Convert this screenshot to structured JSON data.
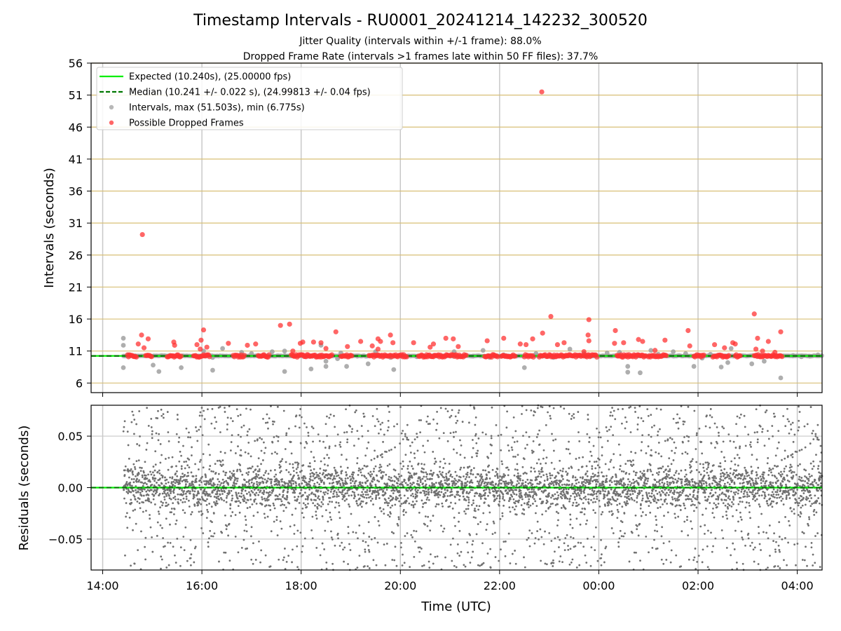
{
  "chart_data": [
    {
      "type": "scatter",
      "title": "Timestamp Intervals - RU0001_20241214_142232_300520",
      "subtitle_1": "Jitter Quality (intervals within +/-1 frame): 88.0%",
      "subtitle_2": "Dropped Frame Rate (intervals >1 frames late within 50 FF files): 37.7%",
      "xlabel": "",
      "ylabel": "Intervals (seconds)",
      "ylim": [
        4.5,
        56
      ],
      "y_ticks": [
        "6",
        "11",
        "16",
        "21",
        "26",
        "31",
        "36",
        "41",
        "46",
        "51",
        "56"
      ],
      "x_range": [
        "2024-12-14 13:46",
        "2024-12-15 04:30"
      ],
      "x_tick_labels": [
        "14:00",
        "16:00",
        "18:00",
        "20:00",
        "22:00",
        "00:00",
        "02:00",
        "04:00"
      ],
      "grid": true,
      "legend_position": "upper-left",
      "legend": [
        "Expected (10.240s), (25.00000 fps)",
        "Median (10.241 +/- 0.022 s), (24.99813 +/- 0.04 fps)",
        "Intervals, max (51.503s), min (6.775s)",
        "Possible Dropped Frames"
      ],
      "expected_interval": 10.24,
      "median_interval": 10.241,
      "colors": {
        "expected": "#00ee00",
        "median": "#007700",
        "intervals": "#a0a0a0",
        "dropped": "#ff3333",
        "interval_gridline": "#d8bf76"
      },
      "series": [
        {
          "name": "Intervals, max (51.503s), min (6.775s)",
          "points": [
            [
              "14:25",
              13.0
            ],
            [
              "14:25",
              11.9
            ],
            [
              "14:25",
              8.4
            ],
            [
              "14:31",
              10.4
            ],
            [
              "15:01",
              8.8
            ],
            [
              "15:08",
              7.8
            ],
            [
              "15:35",
              8.4
            ],
            [
              "16:02",
              11.0
            ],
            [
              "16:13",
              10.0
            ],
            [
              "16:13",
              8.0
            ],
            [
              "16:25",
              11.4
            ],
            [
              "16:45",
              10.2
            ],
            [
              "16:48",
              10.8
            ],
            [
              "17:00",
              10.6
            ],
            [
              "17:25",
              10.9
            ],
            [
              "17:40",
              11.0
            ],
            [
              "17:40",
              7.8
            ],
            [
              "18:00",
              10.4
            ],
            [
              "18:12",
              8.2
            ],
            [
              "18:24",
              11.9
            ],
            [
              "18:30",
              9.4
            ],
            [
              "18:30",
              8.6
            ],
            [
              "18:44",
              9.8
            ],
            [
              "18:48",
              10.7
            ],
            [
              "18:55",
              8.6
            ],
            [
              "19:08",
              10.2
            ],
            [
              "19:21",
              9.0
            ],
            [
              "19:30",
              10.9
            ],
            [
              "19:48",
              10.0
            ],
            [
              "19:52",
              8.1
            ],
            [
              "20:02",
              10.3
            ],
            [
              "20:20",
              10.1
            ],
            [
              "20:40",
              10.3
            ],
            [
              "20:55",
              10.2
            ],
            [
              "21:05",
              10.9
            ],
            [
              "21:28",
              10.2
            ],
            [
              "21:40",
              11.1
            ],
            [
              "21:48",
              10.0
            ],
            [
              "22:05",
              10.4
            ],
            [
              "22:30",
              8.4
            ],
            [
              "22:44",
              10.6
            ],
            [
              "23:05",
              10.0
            ],
            [
              "23:25",
              11.3
            ],
            [
              "23:42",
              10.6
            ],
            [
              "23:50",
              10.2
            ],
            [
              "00:10",
              10.7
            ],
            [
              "00:25",
              10.8
            ],
            [
              "00:35",
              8.6
            ],
            [
              "00:35",
              7.7
            ],
            [
              "00:50",
              7.6
            ],
            [
              "01:03",
              11.1
            ],
            [
              "01:12",
              10.5
            ],
            [
              "01:30",
              10.9
            ],
            [
              "01:45",
              10.6
            ],
            [
              "01:55",
              8.6
            ],
            [
              "02:05",
              9.9
            ],
            [
              "02:15",
              10.5
            ],
            [
              "02:28",
              8.5
            ],
            [
              "02:36",
              9.2
            ],
            [
              "02:40",
              11.4
            ],
            [
              "03:05",
              9.0
            ],
            [
              "03:15",
              10.2
            ],
            [
              "03:20",
              9.4
            ],
            [
              "03:35",
              10.2
            ],
            [
              "03:40",
              6.8
            ],
            [
              "03:55",
              10.3
            ],
            [
              "04:05",
              10.1
            ],
            [
              "04:15",
              10.2
            ],
            [
              "04:25",
              10.4
            ]
          ]
        },
        {
          "name": "Possible Dropped Frames",
          "points": [
            [
              "14:43",
              12.1
            ],
            [
              "14:47",
              13.5
            ],
            [
              "14:50",
              11.5
            ],
            [
              "14:48",
              29.2
            ],
            [
              "14:55",
              12.9
            ],
            [
              "15:26",
              12.4
            ],
            [
              "15:27",
              11.9
            ],
            [
              "15:54",
              12.0
            ],
            [
              "15:58",
              11.3
            ],
            [
              "15:59",
              12.7
            ],
            [
              "16:02",
              14.3
            ],
            [
              "16:06",
              11.6
            ],
            [
              "16:32",
              12.2
            ],
            [
              "16:55",
              11.9
            ],
            [
              "17:05",
              12.1
            ],
            [
              "17:35",
              15.0
            ],
            [
              "17:46",
              15.2
            ],
            [
              "17:50",
              11.0
            ],
            [
              "17:59",
              12.2
            ],
            [
              "18:02",
              12.4
            ],
            [
              "18:15",
              12.4
            ],
            [
              "18:24",
              12.3
            ],
            [
              "18:30",
              11.4
            ],
            [
              "18:42",
              14.0
            ],
            [
              "18:56",
              11.7
            ],
            [
              "19:12",
              12.5
            ],
            [
              "19:26",
              11.8
            ],
            [
              "19:33",
              12.9
            ],
            [
              "19:36",
              12.5
            ],
            [
              "19:33",
              11.3
            ],
            [
              "19:48",
              13.5
            ],
            [
              "19:51",
              12.3
            ],
            [
              "20:16",
              12.3
            ],
            [
              "20:36",
              11.6
            ],
            [
              "20:40",
              12.1
            ],
            [
              "20:55",
              13.0
            ],
            [
              "21:04",
              12.9
            ],
            [
              "21:10",
              11.7
            ],
            [
              "21:45",
              12.6
            ],
            [
              "22:05",
              13.0
            ],
            [
              "22:25",
              12.1
            ],
            [
              "22:32",
              12.0
            ],
            [
              "22:40",
              12.9
            ],
            [
              "22:52",
              13.8
            ],
            [
              "22:51",
              51.5
            ],
            [
              "23:02",
              16.4
            ],
            [
              "23:10",
              12.0
            ],
            [
              "23:18",
              12.3
            ],
            [
              "23:42",
              10.9
            ],
            [
              "23:48",
              15.9
            ],
            [
              "23:47",
              13.5
            ],
            [
              "23:48",
              12.6
            ],
            [
              "00:20",
              14.2
            ],
            [
              "00:19",
              12.2
            ],
            [
              "00:30",
              12.3
            ],
            [
              "00:48",
              12.8
            ],
            [
              "00:53",
              12.5
            ],
            [
              "01:08",
              11.1
            ],
            [
              "01:20",
              12.7
            ],
            [
              "01:48",
              14.2
            ],
            [
              "01:50",
              11.8
            ],
            [
              "02:20",
              12.0
            ],
            [
              "02:32",
              11.5
            ],
            [
              "02:42",
              12.3
            ],
            [
              "02:45",
              12.1
            ],
            [
              "03:08",
              16.8
            ],
            [
              "03:12",
              13.0
            ],
            [
              "03:10",
              11.3
            ],
            [
              "03:18",
              11.0
            ],
            [
              "03:25",
              12.5
            ],
            [
              "03:33",
              10.8
            ],
            [
              "03:40",
              14.0
            ]
          ],
          "dense_bands": [
            [
              "14:30",
              "14:42"
            ],
            [
              "14:52",
              "15:00"
            ],
            [
              "15:18",
              "15:35"
            ],
            [
              "15:50",
              "16:10"
            ],
            [
              "16:38",
              "16:52"
            ],
            [
              "17:08",
              "17:22"
            ],
            [
              "17:48",
              "18:38"
            ],
            [
              "18:48",
              "19:02"
            ],
            [
              "19:22",
              "19:50"
            ],
            [
              "19:52",
              "20:08"
            ],
            [
              "20:22",
              "21:20"
            ],
            [
              "21:42",
              "21:58"
            ],
            [
              "22:02",
              "22:20"
            ],
            [
              "22:30",
              "22:42"
            ],
            [
              "22:48",
              "23:40"
            ],
            [
              "23:42",
              "23:58"
            ],
            [
              "00:22",
              "00:58"
            ],
            [
              "01:00",
              "01:22"
            ],
            [
              "01:55",
              "02:08"
            ],
            [
              "02:18",
              "02:38"
            ],
            [
              "02:45",
              "02:52"
            ],
            [
              "03:08",
              "03:42"
            ]
          ],
          "dense_value": 10.24
        }
      ]
    },
    {
      "type": "scatter",
      "title": "",
      "xlabel": "Time (UTC)",
      "ylabel": "Residuals (seconds)",
      "ylim": [
        -0.08,
        0.08
      ],
      "y_ticks": [
        "0.05",
        "0.00",
        "−0.05"
      ],
      "x_tick_labels": [
        "14:00",
        "16:00",
        "18:00",
        "20:00",
        "22:00",
        "00:00",
        "02:00",
        "04:00"
      ],
      "grid": true,
      "zero_line": 0.0,
      "colors": {
        "residuals": "#707070",
        "zero": "#00ee00"
      },
      "series": [
        {
          "name": "Residuals",
          "x_start": "14:25",
          "x_end": "04:30",
          "approx_points": 4900,
          "core_spread": 0.01,
          "outer_range": 0.08
        }
      ]
    }
  ]
}
